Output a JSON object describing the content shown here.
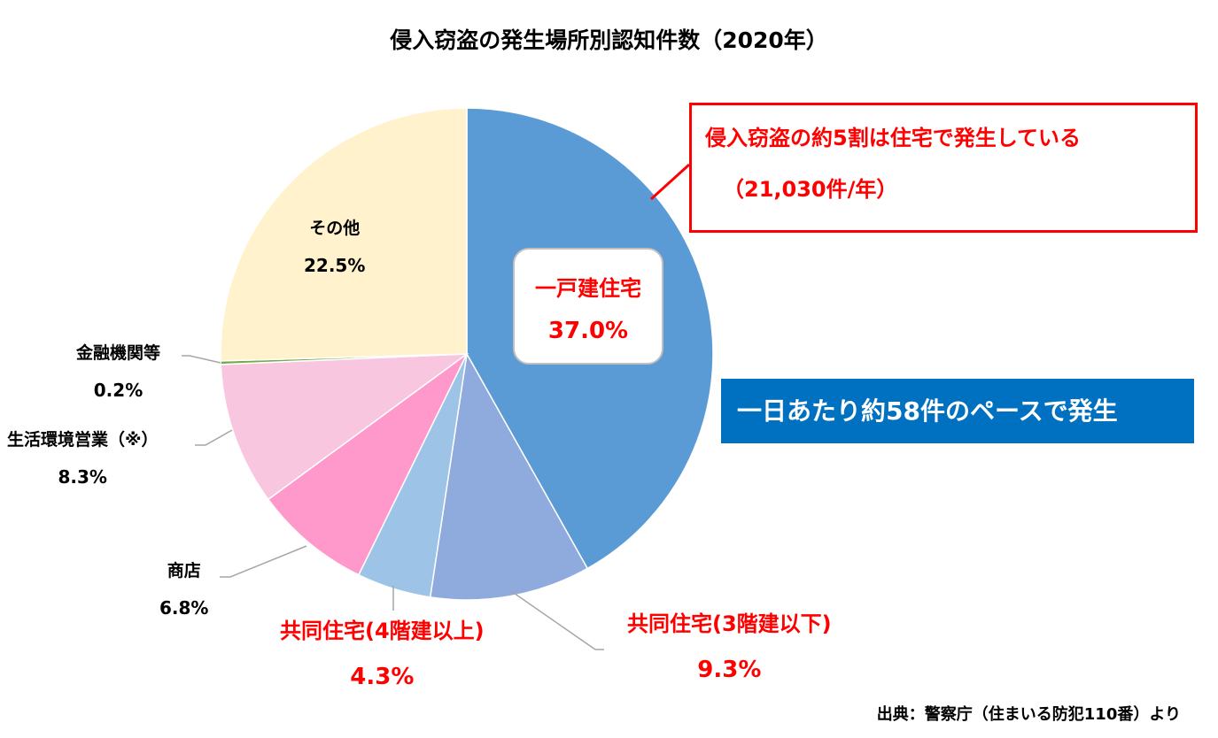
{
  "chart_data": {
    "type": "pie",
    "title": "侵入窃盗の発生場所別認知件数（2020年）",
    "slices": [
      {
        "label": "一戸建住宅",
        "value": 37.0,
        "value_label": "37.0%",
        "color": "#5b9bd5"
      },
      {
        "label": "共同住宅(3階建以下)",
        "value": 9.3,
        "value_label": "9.3%",
        "color": "#8faadc"
      },
      {
        "label": "共同住宅(4階建以上)",
        "value": 4.3,
        "value_label": "4.3%",
        "color": "#9dc3e6"
      },
      {
        "label": "商店",
        "value": 6.8,
        "value_label": "6.8%",
        "color": "#ff99cc"
      },
      {
        "label": "生活環境営業（※）",
        "value": 8.3,
        "value_label": "8.3%",
        "color": "#f9c6e0"
      },
      {
        "label": "金融機関等",
        "value": 0.2,
        "value_label": "0.2%",
        "color": "#70ad47"
      },
      {
        "label": "その他",
        "value": 22.5,
        "value_label": "22.5%",
        "color": "#fff2cc"
      }
    ],
    "start": "12 o'clock",
    "direction": "clockwise"
  },
  "callout": {
    "line1": "侵入窃盗の約5割は住宅で発生している",
    "line2": "（21,030件/年）"
  },
  "banner": "一日あたり約58件のペースで発生",
  "source": "出典：警察庁（住まいる防犯110番）より",
  "colors": {
    "highlight_text": "#ff0000",
    "banner_bg": "#0070c0"
  }
}
